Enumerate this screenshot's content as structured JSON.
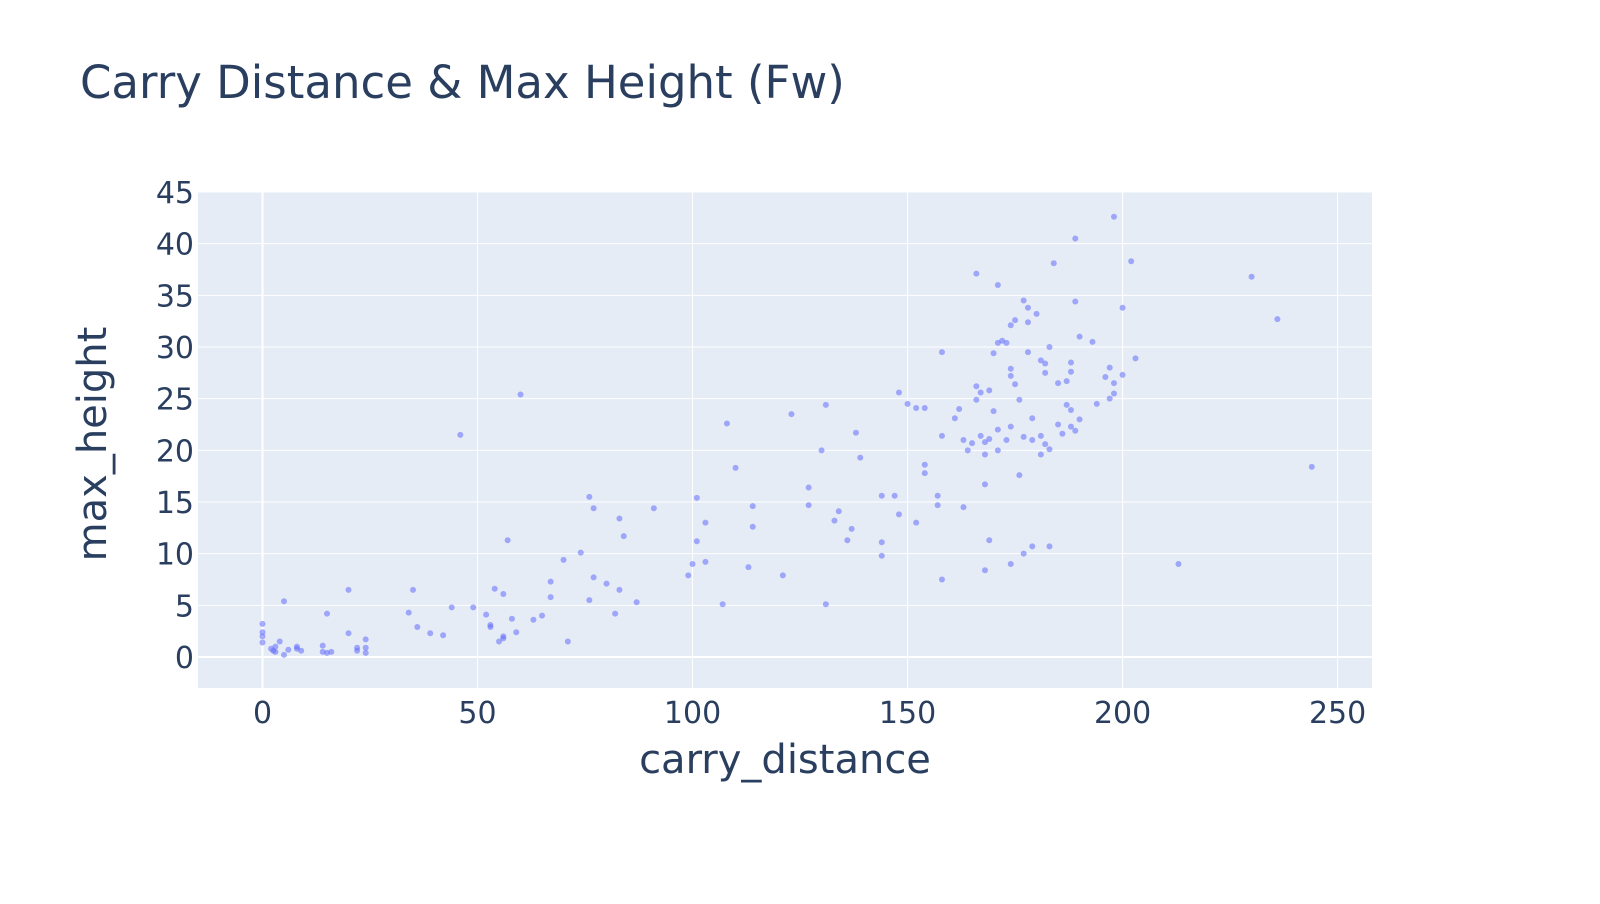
{
  "chart_data": {
    "type": "scatter",
    "title": "Carry Distance & Max Height (Fw)",
    "xlabel": "carry_distance",
    "ylabel": "max_height",
    "xlim": [
      -15,
      258
    ],
    "ylim": [
      -3,
      45
    ],
    "x_ticks": [
      0,
      50,
      100,
      150,
      200,
      250
    ],
    "y_ticks": [
      0,
      5,
      10,
      15,
      20,
      25,
      30,
      35,
      40,
      45
    ],
    "grid": true,
    "legend": "none",
    "colors": {
      "marker": "#636efa",
      "plot_bg": "#e5ecf6",
      "grid": "#ffffff",
      "text": "#2a3f5f"
    },
    "series": [
      {
        "points": [
          [
            0,
            3.2
          ],
          [
            0,
            2.4
          ],
          [
            0,
            2.0
          ],
          [
            0,
            1.4
          ],
          [
            2,
            0.8
          ],
          [
            2.5,
            0.6
          ],
          [
            3,
            1.0
          ],
          [
            3,
            0.5
          ],
          [
            4,
            1.5
          ],
          [
            5,
            0.2
          ],
          [
            5,
            5.4
          ],
          [
            6,
            0.7
          ],
          [
            8,
            0.8
          ],
          [
            8,
            1.0
          ],
          [
            9,
            0.6
          ],
          [
            14,
            0.5
          ],
          [
            14,
            1.1
          ],
          [
            15,
            0.4
          ],
          [
            15,
            4.2
          ],
          [
            16,
            0.5
          ],
          [
            20,
            6.5
          ],
          [
            20,
            2.3
          ],
          [
            22,
            0.6
          ],
          [
            22,
            0.9
          ],
          [
            24,
            1.7
          ],
          [
            24,
            0.9
          ],
          [
            24,
            0.4
          ],
          [
            34,
            4.3
          ],
          [
            35,
            6.5
          ],
          [
            36,
            2.9
          ],
          [
            39,
            2.3
          ],
          [
            42,
            2.1
          ],
          [
            44,
            4.8
          ],
          [
            46,
            21.5
          ],
          [
            49,
            4.8
          ],
          [
            52,
            4.1
          ],
          [
            53,
            3.1
          ],
          [
            53,
            2.9
          ],
          [
            54,
            6.6
          ],
          [
            55,
            1.5
          ],
          [
            56,
            1.8
          ],
          [
            56,
            2.0
          ],
          [
            56,
            6.1
          ],
          [
            57,
            11.3
          ],
          [
            58,
            3.7
          ],
          [
            59,
            2.4
          ],
          [
            60,
            25.4
          ],
          [
            63,
            3.6
          ],
          [
            65,
            4.0
          ],
          [
            67,
            5.8
          ],
          [
            67,
            7.3
          ],
          [
            70,
            9.4
          ],
          [
            71,
            1.5
          ],
          [
            74,
            10.1
          ],
          [
            76,
            5.5
          ],
          [
            76,
            15.5
          ],
          [
            77,
            14.4
          ],
          [
            77,
            7.7
          ],
          [
            80,
            7.1
          ],
          [
            82,
            4.2
          ],
          [
            83,
            13.4
          ],
          [
            83,
            6.5
          ],
          [
            84,
            11.7
          ],
          [
            87,
            5.3
          ],
          [
            91,
            14.4
          ],
          [
            99,
            7.9
          ],
          [
            100,
            9.0
          ],
          [
            101,
            11.2
          ],
          [
            101,
            15.4
          ],
          [
            103,
            9.2
          ],
          [
            103,
            13.0
          ],
          [
            107,
            5.1
          ],
          [
            108,
            22.6
          ],
          [
            110,
            18.3
          ],
          [
            113,
            8.7
          ],
          [
            114,
            14.6
          ],
          [
            114,
            12.6
          ],
          [
            121,
            7.9
          ],
          [
            123,
            23.5
          ],
          [
            127,
            16.4
          ],
          [
            127,
            14.7
          ],
          [
            130,
            20.0
          ],
          [
            131,
            24.4
          ],
          [
            131,
            5.1
          ],
          [
            133,
            13.2
          ],
          [
            134,
            14.1
          ],
          [
            136,
            11.3
          ],
          [
            137,
            12.4
          ],
          [
            138,
            21.7
          ],
          [
            139,
            19.3
          ],
          [
            144,
            15.6
          ],
          [
            144,
            11.1
          ],
          [
            144,
            9.8
          ],
          [
            147,
            15.6
          ],
          [
            148,
            25.6
          ],
          [
            148,
            13.8
          ],
          [
            150,
            24.5
          ],
          [
            152,
            24.1
          ],
          [
            152,
            13.0
          ],
          [
            154,
            24.1
          ],
          [
            154,
            18.6
          ],
          [
            154,
            17.8
          ],
          [
            157,
            15.6
          ],
          [
            157,
            14.7
          ],
          [
            158,
            29.5
          ],
          [
            158,
            21.4
          ],
          [
            158,
            7.5
          ],
          [
            161,
            23.1
          ],
          [
            162,
            24.0
          ],
          [
            163,
            21.0
          ],
          [
            163,
            14.5
          ],
          [
            164,
            20.0
          ],
          [
            165,
            20.7
          ],
          [
            166,
            37.1
          ],
          [
            166,
            24.9
          ],
          [
            166,
            26.2
          ],
          [
            167,
            25.6
          ],
          [
            167,
            21.4
          ],
          [
            168,
            20.8
          ],
          [
            168,
            19.6
          ],
          [
            168,
            16.7
          ],
          [
            168,
            8.4
          ],
          [
            169,
            25.8
          ],
          [
            169,
            21.1
          ],
          [
            169,
            11.3
          ],
          [
            170,
            29.4
          ],
          [
            170,
            23.8
          ],
          [
            171,
            36.0
          ],
          [
            171,
            30.4
          ],
          [
            171,
            22.0
          ],
          [
            171,
            20.0
          ],
          [
            172,
            30.6
          ],
          [
            173,
            30.4
          ],
          [
            173,
            21.0
          ],
          [
            174,
            32.1
          ],
          [
            174,
            27.9
          ],
          [
            174,
            27.2
          ],
          [
            174,
            22.3
          ],
          [
            174,
            9.0
          ],
          [
            175,
            32.6
          ],
          [
            175,
            26.4
          ],
          [
            176,
            24.9
          ],
          [
            176,
            17.6
          ],
          [
            177,
            34.5
          ],
          [
            177,
            21.3
          ],
          [
            177,
            10.0
          ],
          [
            178,
            29.5
          ],
          [
            178,
            32.4
          ],
          [
            178,
            33.8
          ],
          [
            179,
            10.7
          ],
          [
            179,
            21.0
          ],
          [
            179,
            23.1
          ],
          [
            180,
            33.2
          ],
          [
            181,
            28.7
          ],
          [
            181,
            21.4
          ],
          [
            181,
            19.6
          ],
          [
            182,
            28.4
          ],
          [
            182,
            27.5
          ],
          [
            182,
            20.6
          ],
          [
            183,
            30.0
          ],
          [
            183,
            20.1
          ],
          [
            183,
            10.7
          ],
          [
            184,
            38.1
          ],
          [
            185,
            22.5
          ],
          [
            185,
            26.5
          ],
          [
            186,
            21.6
          ],
          [
            187,
            24.4
          ],
          [
            187,
            26.7
          ],
          [
            188,
            23.9
          ],
          [
            188,
            27.6
          ],
          [
            188,
            28.5
          ],
          [
            188,
            22.3
          ],
          [
            189,
            40.5
          ],
          [
            189,
            34.4
          ],
          [
            189,
            21.9
          ],
          [
            190,
            31.0
          ],
          [
            190,
            23.0
          ],
          [
            193,
            30.5
          ],
          [
            194,
            24.5
          ],
          [
            196,
            27.1
          ],
          [
            197,
            25.0
          ],
          [
            197,
            28.0
          ],
          [
            198,
            25.5
          ],
          [
            198,
            26.5
          ],
          [
            198,
            42.6
          ],
          [
            200,
            27.3
          ],
          [
            200,
            33.8
          ],
          [
            202,
            38.3
          ],
          [
            203,
            28.9
          ],
          [
            213,
            9.0
          ],
          [
            230,
            36.8
          ],
          [
            236,
            32.7
          ],
          [
            244,
            18.4
          ]
        ]
      }
    ]
  }
}
